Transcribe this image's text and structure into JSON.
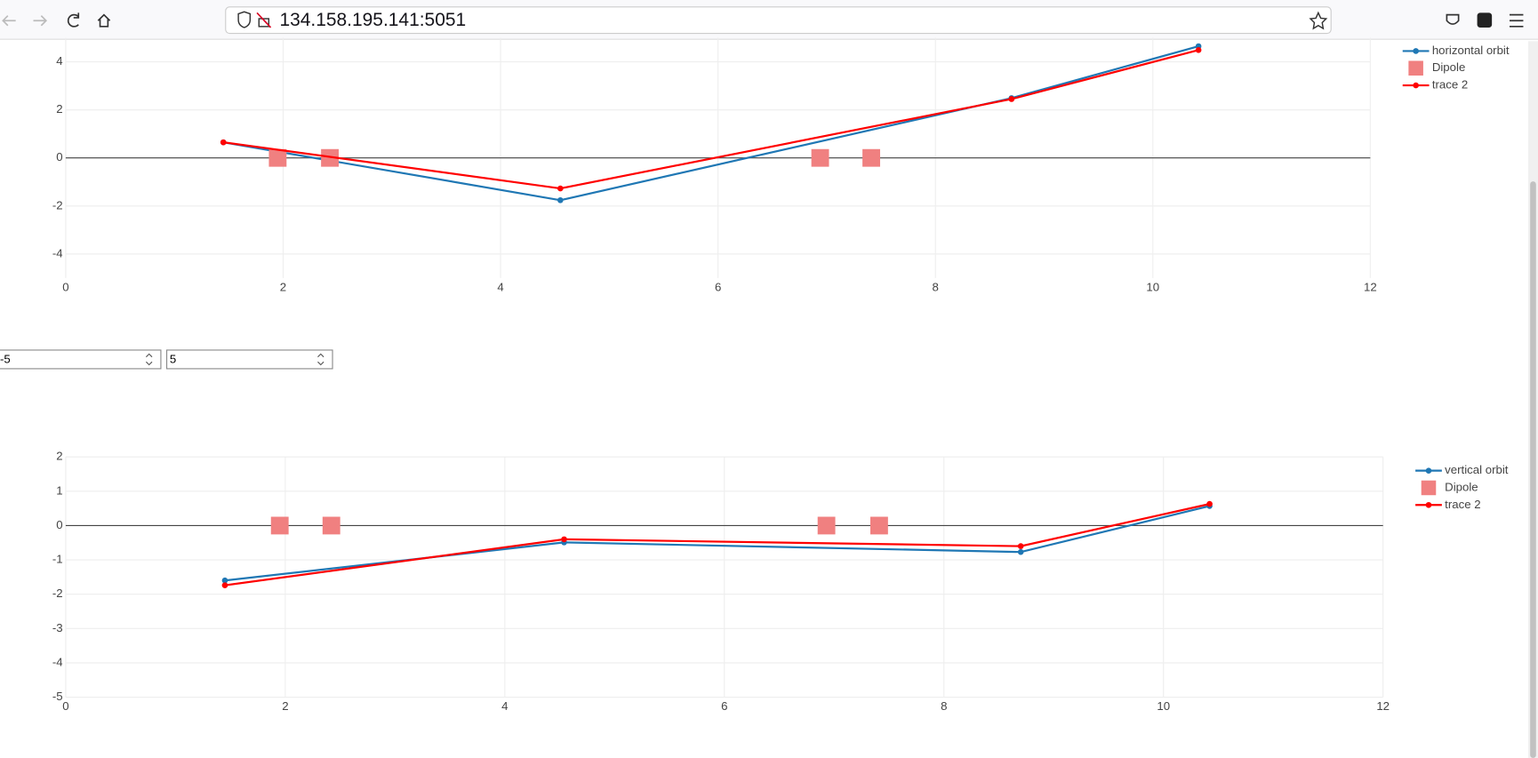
{
  "browser": {
    "url": "134.158.195.141:5051"
  },
  "controls": {
    "inputs": [
      "-5",
      "5"
    ]
  },
  "chart_data": [
    {
      "type": "line",
      "xlim": [
        0,
        12
      ],
      "xticks": [
        0,
        2,
        4,
        6,
        8,
        10,
        12
      ],
      "ylim": [
        -5,
        5
      ],
      "yticks": [
        -4,
        -2,
        0,
        2,
        4
      ],
      "grid": true,
      "legend": "right",
      "series": [
        {
          "name": "horizontal orbit",
          "color": "#1f77b4",
          "mode": "lines+markers",
          "x": [
            1.45,
            4.55,
            8.7,
            10.42
          ],
          "values": [
            0.65,
            -1.76,
            2.49,
            4.65
          ]
        },
        {
          "name": "Dipole",
          "color": "#f08080",
          "mode": "markers",
          "x": [
            1.95,
            2.43,
            6.94,
            7.41
          ],
          "values": [
            0,
            0,
            0,
            0
          ]
        },
        {
          "name": "trace 2",
          "color": "#ff0000",
          "mode": "lines+markers",
          "x": [
            1.45,
            4.55,
            8.7,
            10.42
          ],
          "values": [
            0.65,
            -1.27,
            2.45,
            4.49
          ]
        }
      ]
    },
    {
      "type": "line",
      "xlim": [
        0,
        12
      ],
      "xticks": [
        0,
        2,
        4,
        6,
        8,
        10,
        12
      ],
      "ylim": [
        -5,
        2
      ],
      "yticks": [
        -5,
        -4,
        -3,
        -2,
        -1,
        0,
        1,
        2
      ],
      "grid": true,
      "legend": "right",
      "series": [
        {
          "name": "vertical orbit",
          "color": "#1f77b4",
          "mode": "lines+markers",
          "x": [
            1.45,
            4.54,
            8.7,
            10.42
          ],
          "values": [
            -1.6,
            -0.49,
            -0.77,
            0.57
          ]
        },
        {
          "name": "Dipole",
          "color": "#f08080",
          "mode": "markers",
          "x": [
            1.95,
            2.42,
            6.93,
            7.41
          ],
          "values": [
            0,
            0,
            0,
            0
          ]
        },
        {
          "name": "trace 2",
          "color": "#ff0000",
          "mode": "lines+markers",
          "x": [
            1.45,
            4.54,
            8.7,
            10.42
          ],
          "values": [
            -1.74,
            -0.4,
            -0.6,
            0.63
          ]
        }
      ]
    }
  ]
}
